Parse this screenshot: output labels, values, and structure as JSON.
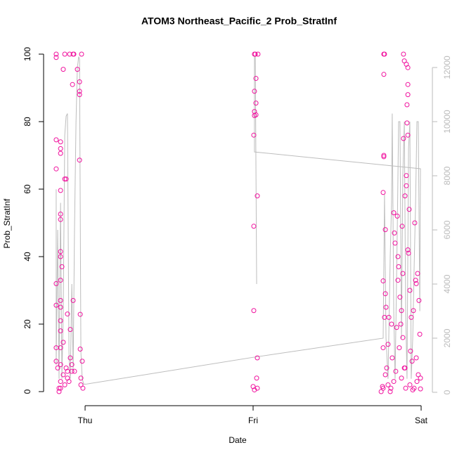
{
  "chart_data": {
    "type": "scatter",
    "title": "ATOM3 Northeast_Pacific_2 Prob_StratInf",
    "xlabel": "Date",
    "ylabel": "Prob_StratInf",
    "xlim": [
      -0.247,
      2.067
    ],
    "xticks": [
      {
        "value": 0,
        "label": "Thu"
      },
      {
        "value": 1,
        "label": "Fri"
      },
      {
        "value": 2,
        "label": "Sat"
      }
    ],
    "ylim": [
      -4.17,
      103.54
    ],
    "yticks": [
      0,
      20,
      40,
      60,
      80,
      100
    ],
    "y2lim": [
      -494,
      12935
    ],
    "y2ticks": [
      0,
      2000,
      4000,
      6000,
      8000,
      10000,
      12000
    ],
    "series": [
      {
        "type": "line",
        "axis": "y2",
        "color": "#bdbdbd",
        "x": [
          -0.172,
          -0.172,
          -0.163,
          -0.155,
          -0.146,
          -0.138,
          -0.13,
          -0.121,
          -0.113,
          -0.105,
          -0.096,
          -0.092,
          -0.088,
          -0.079,
          -0.071,
          -0.063,
          -0.054,
          -0.046,
          -0.038,
          -0.033,
          -0.029,
          -0.025,
          -0.017,
          -0.008,
          0.004,
          1.008,
          1.774,
          1.782,
          1.791,
          1.803,
          1.816,
          1.824,
          1.828,
          1.837,
          1.845,
          1.858,
          1.866,
          1.874,
          1.883,
          1.891,
          1.9,
          1.908,
          1.916,
          1.925,
          1.933,
          1.941,
          1.95,
          1.958,
          1.967,
          1.975,
          1.983,
          1.992,
          1.996,
          1.008,
          1.008,
          1.013,
          1.021
        ],
        "values": [
          7500,
          1000,
          6000,
          500,
          7000,
          500,
          3000,
          9500,
          10200,
          10300,
          1500,
          800,
          500,
          4000,
          800,
          6000,
          10000,
          12000,
          12400,
          12300,
          7000,
          1500,
          500,
          300,
          300,
          1300,
          2000,
          7300,
          2000,
          500,
          5000,
          7000,
          10300,
          3000,
          500,
          6000,
          10000,
          10000,
          2000,
          8000,
          10000,
          3000,
          500,
          9000,
          10000,
          500,
          2000,
          4500,
          7000,
          10000,
          10000,
          3000,
          8260,
          8880,
          12400,
          12400,
          4000
        ]
      },
      {
        "type": "scatter",
        "color": "#f0129e",
        "x": [
          -0.172,
          -0.172,
          -0.172,
          -0.172,
          -0.172,
          -0.172,
          -0.172,
          -0.172,
          -0.163,
          -0.155,
          -0.155,
          -0.146,
          -0.146,
          -0.146,
          -0.146,
          -0.146,
          -0.146,
          -0.146,
          -0.146,
          -0.146,
          -0.146,
          -0.146,
          -0.146,
          -0.146,
          -0.146,
          -0.146,
          -0.146,
          -0.146,
          -0.138,
          -0.13,
          -0.13,
          -0.13,
          -0.121,
          -0.121,
          -0.113,
          -0.105,
          -0.105,
          -0.096,
          -0.092,
          -0.088,
          -0.079,
          -0.075,
          -0.071,
          -0.071,
          -0.067,
          -0.046,
          -0.033,
          -0.033,
          -0.033,
          -0.033,
          -0.029,
          -0.029,
          -0.025,
          -0.025,
          -0.021,
          -0.013,
          -0.017,
          -0.088,
          -0.113,
          -0.121,
          -0.105,
          -0.079,
          -0.063,
          1.008,
          1.008,
          1.008,
          1.008,
          1.004,
          1.004,
          1.004,
          1.0,
          1.013,
          1.017,
          1.017,
          1.017,
          1.025,
          1.025,
          1.021,
          1.025,
          1.008,
          1.029,
          1.778,
          1.782,
          1.778,
          1.778,
          1.778,
          1.774,
          1.787,
          1.774,
          1.787,
          1.791,
          1.782,
          1.808,
          1.803,
          1.795,
          1.774,
          1.774,
          1.787,
          1.803,
          1.816,
          1.828,
          1.837,
          1.845,
          1.858,
          1.862,
          1.866,
          1.874,
          1.879,
          1.87,
          1.887,
          1.891,
          1.895,
          1.895,
          1.9,
          1.904,
          1.912,
          1.921,
          1.921,
          1.921,
          1.916,
          1.916,
          1.921,
          1.912,
          1.912,
          1.904,
          1.921,
          1.925,
          1.929,
          1.933,
          1.937,
          1.941,
          1.946,
          1.954,
          1.962,
          1.967,
          1.971,
          1.979,
          1.987,
          1.992,
          1.983,
          1.975,
          1.996,
          1.958,
          1.95,
          1.933,
          1.908,
          1.883,
          1.849,
          1.824,
          1.841,
          1.854,
          1.862,
          1.883,
          1.891,
          1.82,
          1.762,
          1.77,
          1.837,
          1.9,
          1.996,
          1.971
        ],
        "values": [
          100,
          99,
          74.6,
          66,
          32,
          25.6,
          13,
          9,
          7,
          1,
          0,
          74,
          72,
          70.6,
          59.6,
          52.6,
          51,
          41.5,
          40,
          33,
          27,
          25,
          21,
          18,
          13,
          8,
          3,
          1,
          37,
          14.6,
          5,
          95.5,
          63,
          100,
          63,
          23,
          6,
          3,
          100,
          18.4,
          8,
          91,
          27,
          100,
          100,
          95.5,
          91.8,
          89,
          88,
          68.6,
          22.9,
          12.6,
          4,
          2,
          100,
          1,
          9,
          10,
          7,
          2,
          4,
          6,
          6,
          100,
          89,
          83,
          81.8,
          76,
          49,
          24,
          1.5,
          100,
          92.8,
          85.5,
          82,
          58,
          10,
          4,
          1,
          0.5,
          100,
          100,
          100,
          94,
          70,
          69.6,
          59,
          48,
          32.8,
          29,
          25,
          22,
          22,
          14,
          7,
          13,
          1,
          5,
          2,
          0,
          10,
          53,
          44,
          52,
          40,
          37,
          28,
          20,
          13,
          49,
          35,
          75,
          100,
          98,
          7,
          97,
          96,
          91,
          88,
          85,
          79.6,
          76,
          64,
          61,
          58,
          42,
          41,
          54,
          30,
          12,
          22,
          9,
          24,
          50,
          33,
          32,
          35,
          27,
          17,
          5,
          3,
          4,
          1,
          0.5,
          2,
          1,
          4,
          6,
          20,
          47,
          19,
          33,
          24,
          16,
          1,
          0,
          1.5,
          3,
          7,
          0.8,
          10
        ]
      }
    ]
  }
}
